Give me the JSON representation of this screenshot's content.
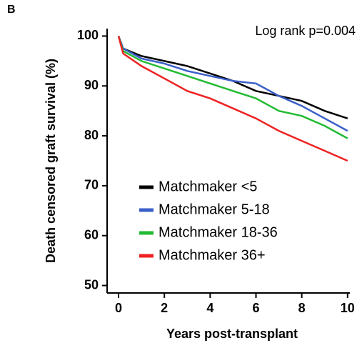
{
  "panel_label": "B",
  "chart_data": {
    "type": "line",
    "annotation": "Log rank p=0.004",
    "xlabel": "Years post-transplant",
    "ylabel": "Death censored graft survival (%)",
    "xlim": [
      -0.5,
      10.1
    ],
    "ylim": [
      48.5,
      101.5
    ],
    "xticks": [
      0,
      2,
      4,
      6,
      8,
      10
    ],
    "yticks": [
      50,
      60,
      70,
      80,
      90,
      100
    ],
    "legend": "lower left",
    "x": [
      0,
      0.2,
      1,
      2,
      3,
      4,
      5,
      6,
      7,
      8,
      9,
      10
    ],
    "series": [
      {
        "name": "Matchmaker <5",
        "color": "#000000",
        "values": [
          100,
          97.5,
          96,
          95,
          94,
          92.5,
          91,
          89,
          88,
          87,
          85,
          83.5
        ]
      },
      {
        "name": "Matchmaker 5-18",
        "color": "#3a5fc8",
        "values": [
          100,
          97.5,
          95.5,
          94.5,
          93,
          92,
          91,
          90.5,
          88,
          86,
          83.5,
          81
        ]
      },
      {
        "name": "Matchmaker 18-36",
        "color": "#22bb33",
        "values": [
          100,
          97,
          95,
          93.5,
          92,
          90.5,
          89,
          87.5,
          85,
          84,
          82,
          79.5
        ]
      },
      {
        "name": "Matchmaker 36+",
        "color": "#ee2222",
        "values": [
          100,
          96.5,
          94,
          91.5,
          89,
          87.5,
          85.5,
          83.5,
          81,
          79,
          77,
          75
        ]
      }
    ]
  }
}
